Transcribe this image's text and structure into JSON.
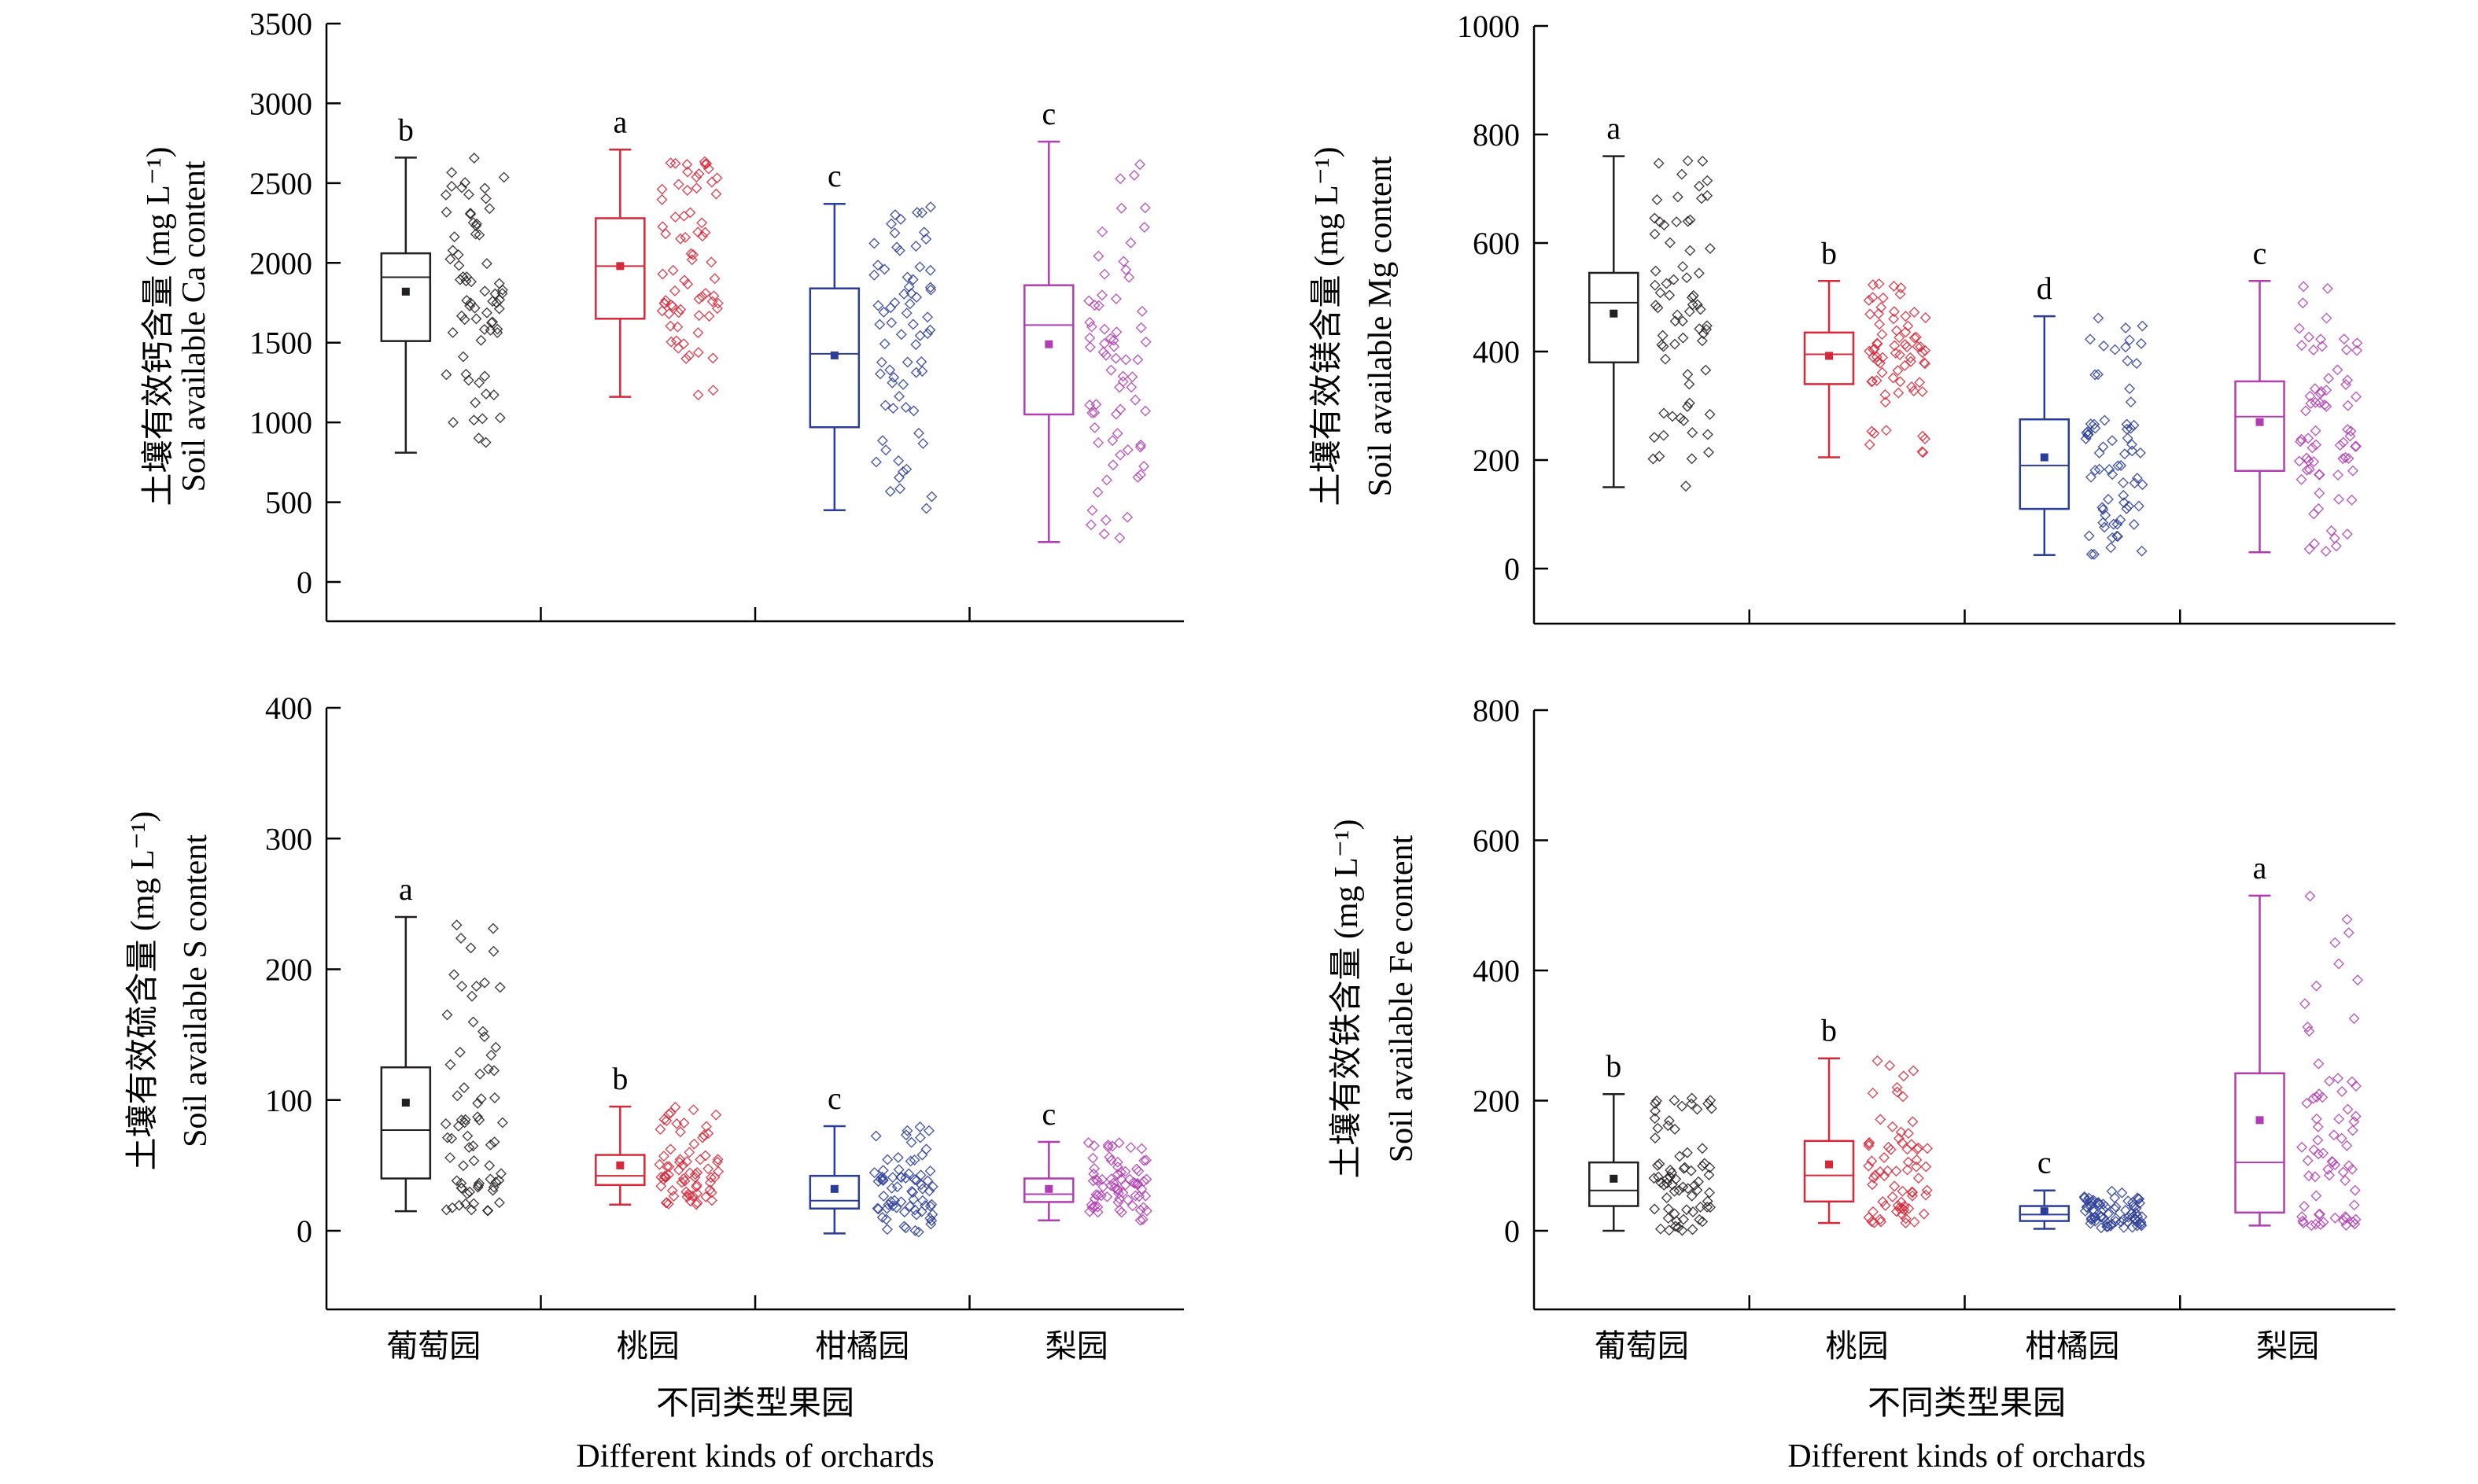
{
  "shared": {
    "categories": [
      "葡萄园",
      "桃园",
      "柑橘园",
      "梨园"
    ],
    "xlabel_cn": "不同类型果园",
    "xlabel_en": "Different kinds of orchards",
    "colors": [
      "#231f20",
      "#d7283a",
      "#2b3d9a",
      "#b23db3"
    ]
  },
  "chart_data": [
    {
      "type": "box",
      "panel": "top-left",
      "ylabel_cn": "土壤有效钙含量 (mg L⁻¹)",
      "ylabel_en": "Soil available Ca content",
      "ylim": [
        -200,
        3500
      ],
      "yticks": [
        0,
        500,
        1000,
        1500,
        2000,
        2500,
        3000,
        3500
      ],
      "boxes": [
        {
          "min": 810,
          "q1": 1510,
          "median": 1910,
          "q3": 2060,
          "max": 2660,
          "mean": 1820,
          "letter": "b"
        },
        {
          "min": 1160,
          "q1": 1650,
          "median": 1980,
          "q3": 2280,
          "max": 2710,
          "mean": 1980,
          "letter": "a"
        },
        {
          "min": 450,
          "q1": 970,
          "median": 1430,
          "q3": 1840,
          "max": 2370,
          "mean": 1420,
          "letter": "c"
        },
        {
          "min": 250,
          "q1": 1050,
          "median": 1610,
          "q3": 1860,
          "max": 2760,
          "mean": 1490,
          "letter": "c"
        }
      ]
    },
    {
      "type": "box",
      "panel": "top-right",
      "ylabel_cn": "土壤有效镁含量 (mg L⁻¹)",
      "ylabel_en": "Soil available Mg content",
      "ylim": [
        -100,
        1000
      ],
      "yticks": [
        0,
        200,
        400,
        600,
        800,
        1000
      ],
      "boxes": [
        {
          "min": 150,
          "q1": 380,
          "median": 490,
          "q3": 545,
          "max": 760,
          "mean": 470,
          "letter": "a"
        },
        {
          "min": 205,
          "q1": 340,
          "median": 395,
          "q3": 435,
          "max": 530,
          "mean": 392,
          "letter": "b"
        },
        {
          "min": 25,
          "q1": 110,
          "median": 190,
          "q3": 275,
          "max": 465,
          "mean": 205,
          "letter": "d"
        },
        {
          "min": 30,
          "q1": 180,
          "median": 280,
          "q3": 345,
          "max": 530,
          "mean": 270,
          "letter": "c"
        }
      ]
    },
    {
      "type": "box",
      "panel": "bottom-left",
      "ylabel_cn": "土壤有效硫含量 (mg L⁻¹)",
      "ylabel_en": "Soil available S content",
      "ylim": [
        -50,
        400
      ],
      "yticks": [
        0,
        100,
        200,
        300,
        400
      ],
      "boxes": [
        {
          "min": 15,
          "q1": 40,
          "median": 77,
          "q3": 125,
          "max": 240,
          "mean": 98,
          "letter": "a"
        },
        {
          "min": 20,
          "q1": 35,
          "median": 42,
          "q3": 58,
          "max": 95,
          "mean": 50,
          "letter": "b"
        },
        {
          "min": -2,
          "q1": 17,
          "median": 23,
          "q3": 42,
          "max": 80,
          "mean": 32,
          "letter": "c"
        },
        {
          "min": 8,
          "q1": 22,
          "median": 28,
          "q3": 40,
          "max": 68,
          "mean": 32,
          "letter": "c"
        }
      ]
    },
    {
      "type": "box",
      "panel": "bottom-right",
      "ylabel_cn": "土壤有效铁含量 (mg L⁻¹)",
      "ylabel_en": "Soil available Fe content",
      "ylim": [
        -100,
        800
      ],
      "yticks": [
        0,
        200,
        400,
        600,
        800
      ],
      "boxes": [
        {
          "min": 0,
          "q1": 38,
          "median": 62,
          "q3": 105,
          "max": 210,
          "mean": 80,
          "letter": "b"
        },
        {
          "min": 12,
          "q1": 45,
          "median": 85,
          "q3": 138,
          "max": 265,
          "mean": 102,
          "letter": "b"
        },
        {
          "min": 3,
          "q1": 15,
          "median": 25,
          "q3": 38,
          "max": 62,
          "mean": 30,
          "letter": "c"
        },
        {
          "min": 8,
          "q1": 28,
          "median": 105,
          "q3": 242,
          "max": 515,
          "mean": 170,
          "letter": "a"
        }
      ]
    }
  ]
}
